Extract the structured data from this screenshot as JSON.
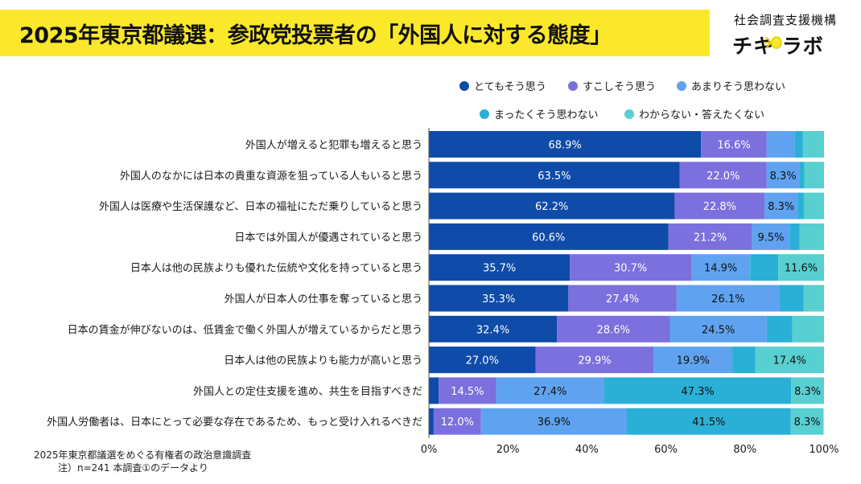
{
  "header": {
    "title": "2025年東京都議選：参政党投票者の「外国人に対する態度」",
    "brand_top": "社会調査支援機構",
    "brand_bottom": "チキ ラボ"
  },
  "footnote": {
    "line1": "2025年東京都議選をめぐる有権者の政治意識調査",
    "line2": "注）n=241 本調査①のデータより"
  },
  "colors": [
    "#0f4ba8",
    "#7b70de",
    "#5fa3f0",
    "#2ab0d6",
    "#58cfd0"
  ],
  "chart_data": {
    "type": "bar",
    "orientation": "horizontal",
    "stacked": true,
    "categories": [
      "外国人が増えると犯罪も増えると思う",
      "外国人のなかには日本の貴重な資源を狙っている人もいると思う",
      "外国人は医療や生活保護など、日本の福祉にただ乗りしていると思う",
      "日本では外国人が優遇されていると思う",
      "日本人は他の民族よりも優れた伝統や文化を持っていると思う",
      "外国人が日本人の仕事を奪っていると思う",
      "日本の賃金が伸びないのは、低賃金で働く外国人が増えているからだと思う",
      "日本人は他の民族よりも能力が高いと思う",
      "外国人との定住支援を進め、共生を目指すべきだ",
      "外国人労働者は、日本にとって必要な存在であるため、もっと受け入れるべきだ"
    ],
    "series": [
      {
        "name": "とてもそう思う",
        "values": [
          68.9,
          63.5,
          62.2,
          60.6,
          35.7,
          35.3,
          32.4,
          27.0,
          2.5,
          1.2
        ]
      },
      {
        "name": "すこしそう思う",
        "values": [
          16.6,
          22.0,
          22.8,
          21.2,
          30.7,
          27.4,
          28.6,
          29.9,
          14.5,
          12.0
        ]
      },
      {
        "name": "あまりそう思わない",
        "values": [
          7.1,
          8.3,
          8.3,
          9.5,
          14.9,
          26.1,
          24.5,
          19.9,
          27.4,
          36.9
        ]
      },
      {
        "name": "まったくそう思わない",
        "values": [
          2.0,
          1.2,
          1.6,
          2.5,
          7.1,
          6.0,
          6.5,
          5.8,
          47.3,
          41.5
        ]
      },
      {
        "name": "わからない・答えたくない",
        "values": [
          5.4,
          5.0,
          5.1,
          6.2,
          11.6,
          5.2,
          8.0,
          17.4,
          8.3,
          8.3
        ]
      }
    ],
    "data_labels": [
      [
        "68.9%",
        "16.6%",
        "",
        "",
        ""
      ],
      [
        "63.5%",
        "22.0%",
        "8.3%",
        "",
        ""
      ],
      [
        "62.2%",
        "22.8%",
        "8.3%",
        "",
        ""
      ],
      [
        "60.6%",
        "21.2%",
        "9.5%",
        "",
        ""
      ],
      [
        "35.7%",
        "30.7%",
        "14.9%",
        "",
        "11.6%"
      ],
      [
        "35.3%",
        "27.4%",
        "26.1%",
        "",
        ""
      ],
      [
        "32.4%",
        "28.6%",
        "24.5%",
        "",
        ""
      ],
      [
        "27.0%",
        "29.9%",
        "19.9%",
        "",
        "17.4%"
      ],
      [
        "",
        "14.5%",
        "27.4%",
        "47.3%",
        "8.3%"
      ],
      [
        "",
        "12.0%",
        "36.9%",
        "41.5%",
        "8.3%"
      ]
    ],
    "x_ticks": [
      "0%",
      "20%",
      "40%",
      "60%",
      "80%",
      "100%"
    ],
    "xlim": [
      0,
      100
    ],
    "grid": false,
    "legend_position": "top-right"
  }
}
